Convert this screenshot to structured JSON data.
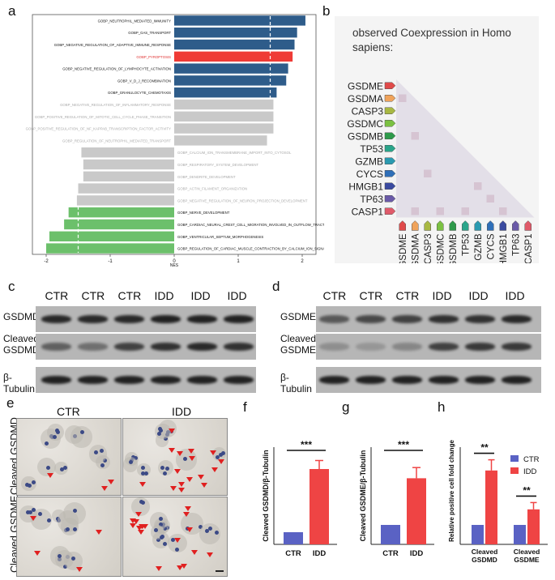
{
  "panel_letters": {
    "a": "a",
    "b": "b",
    "c": "c",
    "d": "d",
    "e": "e",
    "f": "f",
    "g": "g",
    "h": "h"
  },
  "colors": {
    "blue": "#2e5c8a",
    "red": "#ef3b36",
    "grey": "#c9c9c9",
    "green": "#6cc06b",
    "bar_blue": "#5a62c4",
    "bar_red": "#ef4444"
  },
  "chart_data": [
    {
      "id": "a",
      "type": "bar",
      "orientation": "horizontal",
      "xlabel": "NES",
      "xlim": [
        -2.1,
        2.2
      ],
      "xticks": [
        "-2",
        "-1",
        "0",
        "1",
        "2"
      ],
      "bars": [
        {
          "label": "GOBP_NEUTROPHIL_MEDIATED_IMMUNITY",
          "value": 2.05,
          "group": "blue"
        },
        {
          "label": "GOBP_GAS_TRANSPORT",
          "value": 1.92,
          "group": "blue"
        },
        {
          "label": "GOBP_NEGATIVE_REGULATION_OF_ADAPTIVE_IMMUNE_RESPONSE",
          "value": 1.88,
          "group": "blue"
        },
        {
          "label": "GOBP_PYROPTOSIS",
          "value": 1.85,
          "group": "red"
        },
        {
          "label": "GOBP_NEGATIVE_REGULATION_OF_LYMPHOCYTE_ACTIVATION",
          "value": 1.78,
          "group": "blue"
        },
        {
          "label": "GOBP_V_D_J_RECOMBINATION",
          "value": 1.75,
          "group": "blue"
        },
        {
          "label": "GOBP_GRANULOCYTE_CHEMOTAXIS",
          "value": 1.6,
          "group": "blue"
        },
        {
          "label": "GOBP_NEGATIVE_REGULATION_OF_INFLAMMATORY_RESPONSE",
          "value": 1.55,
          "group": "grey"
        },
        {
          "label": "GOBP_POSITIVE_REGULATION_OF_MITOTIC_CELL_CYCLE_PHASE_TRANSITION",
          "value": 1.55,
          "group": "grey"
        },
        {
          "label": "GOBP_POSITIVE_REGULATION_OF_NF_KAPPAB_TRANSCRIPTION_FACTOR_ACTIVITY",
          "value": 1.55,
          "group": "grey"
        },
        {
          "label": "GOBP_REGULATION_OF_NEUTROPHIL_MEDIATED_TRANSPORT",
          "value": 1.45,
          "group": "grey"
        },
        {
          "label": "GOBP_CALCIUM_ION_TRANSMEMBRANE_IMPORT_INTO_CYTOSOL",
          "value": -1.45,
          "group": "grey"
        },
        {
          "label": "GOBP_RESPIRATORY_SYSTEM_DEVELOPMENT",
          "value": -1.42,
          "group": "grey"
        },
        {
          "label": "GOBP_DENDRITE_DEVELOPMENT",
          "value": -1.42,
          "group": "grey"
        },
        {
          "label": "GOBP_ACTIN_FILAMENT_ORGANIZATION",
          "value": -1.5,
          "group": "grey"
        },
        {
          "label": "GOBP_NEGATIVE_REGULATION_OF_NEURON_PROJECTION_DEVELOPMENT",
          "value": -1.52,
          "group": "grey"
        },
        {
          "label": "GOBP_NERVE_DEVELOPMENT",
          "value": -1.65,
          "group": "green"
        },
        {
          "label": "GOBP_CARDIAC_NEURAL_CREST_CELL_MIGRATION_INVOLVED_IN_OUTFLOW_TRACT_MORPHOGENESIS",
          "value": -1.72,
          "group": "green"
        },
        {
          "label": "GOBP_VENTRICULAR_SEPTUM_MORPHOGENESIS",
          "value": -1.95,
          "group": "green"
        },
        {
          "label": "GOBP_REGULATION_OF_CARDIAC_MUSCLE_CONTRACTION_BY_CALCIUM_ION_SIGNALING",
          "value": -2.0,
          "group": "green"
        }
      ]
    },
    {
      "id": "f",
      "type": "bar",
      "categories": [
        "CTR",
        "IDD"
      ],
      "values": [
        1.0,
        6.2
      ],
      "errors": [
        0,
        0.7
      ],
      "ylabel": "Cleaved GSDMD/β-Tubulin",
      "ylim": [
        0,
        8
      ],
      "significance": "***"
    },
    {
      "id": "g",
      "type": "bar",
      "categories": [
        "CTR",
        "IDD"
      ],
      "values": [
        1.0,
        3.4
      ],
      "errors": [
        0,
        0.55
      ],
      "ylabel": "Cleaved GSDME/β-Tubulin",
      "ylim": [
        0,
        5
      ],
      "significance": "***"
    },
    {
      "id": "h",
      "type": "bar",
      "categories": [
        "Cleaved GSDMD",
        "Cleaved GSDME"
      ],
      "series": [
        {
          "name": "CTR",
          "values": [
            1.0,
            1.0
          ],
          "errors": [
            0,
            0
          ]
        },
        {
          "name": "IDD",
          "values": [
            3.8,
            1.8
          ],
          "errors": [
            0.55,
            0.35
          ]
        }
      ],
      "ylabel": "Relative positive cell fold change",
      "ylim": [
        0,
        5
      ],
      "significance": [
        "**",
        "**"
      ],
      "legend": "top-right"
    }
  ],
  "coexpression": {
    "title": "observed Coexpression in Homo sapiens:",
    "genes": [
      "GSDME",
      "GSDMA",
      "CASP3",
      "GSDMC",
      "GSDMB",
      "TP53",
      "GZMB",
      "CYCS",
      "HMGB1",
      "TP63",
      "CASP1"
    ],
    "gene_colors": [
      "#e04a4a",
      "#f0a35a",
      "#a8b842",
      "#7bc142",
      "#2e9a4a",
      "#2aa58a",
      "#2a9ab0",
      "#2f6fb8",
      "#3a4aa0",
      "#6a5aa8",
      "#e05a6a"
    ]
  },
  "blot_c": {
    "headers": [
      "CTR",
      "CTR",
      "CTR",
      "IDD",
      "IDD",
      "IDD"
    ],
    "rows": [
      "GSDMD",
      "Cleaved GSDMD",
      "β-Tubulin"
    ],
    "intensity": [
      [
        0.9,
        0.9,
        0.9,
        0.95,
        0.95,
        0.95
      ],
      [
        0.55,
        0.45,
        0.75,
        0.85,
        0.9,
        0.85
      ],
      [
        0.95,
        0.95,
        0.95,
        0.95,
        0.95,
        0.95
      ]
    ]
  },
  "blot_d": {
    "headers": [
      "CTR",
      "CTR",
      "CTR",
      "IDD",
      "IDD",
      "IDD"
    ],
    "rows": [
      "GSDME",
      "Cleaved GSDME",
      "β-Tubulin"
    ],
    "intensity": [
      [
        0.6,
        0.7,
        0.75,
        0.85,
        0.85,
        0.9
      ],
      [
        0.25,
        0.2,
        0.3,
        0.75,
        0.8,
        0.8
      ],
      [
        0.95,
        0.95,
        0.95,
        0.95,
        0.95,
        0.95
      ]
    ]
  },
  "micro_e": {
    "col_headers": [
      "CTR",
      "IDD"
    ],
    "row_labels": [
      "Cleaved GSDMD",
      "Cleaved GSDME"
    ]
  }
}
